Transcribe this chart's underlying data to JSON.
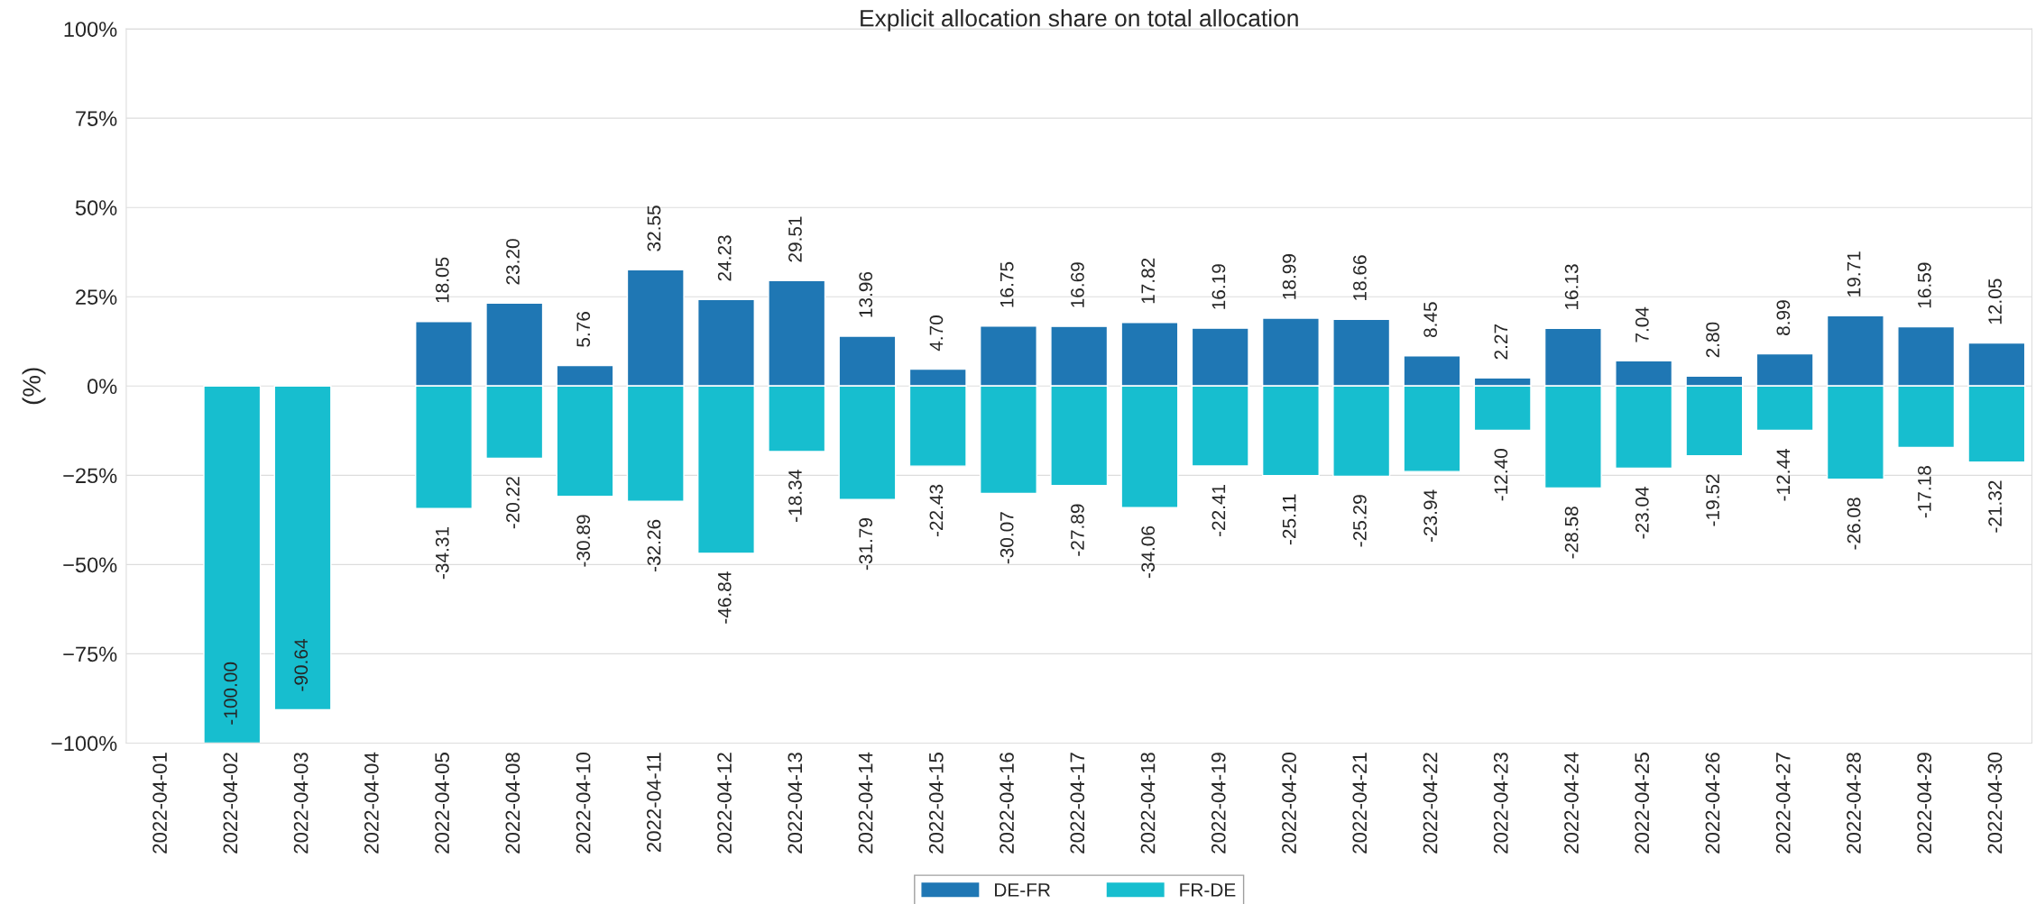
{
  "chart_data": {
    "type": "bar",
    "title": "Explicit allocation share on total allocation",
    "ylabel": "(%)",
    "categories": [
      "2022-04-01",
      "2022-04-02",
      "2022-04-03",
      "2022-04-04",
      "2022-04-05",
      "2022-04-08",
      "2022-04-10",
      "2022-04-11",
      "2022-04-12",
      "2022-04-13",
      "2022-04-14",
      "2022-04-15",
      "2022-04-16",
      "2022-04-17",
      "2022-04-18",
      "2022-04-19",
      "2022-04-20",
      "2022-04-21",
      "2022-04-22",
      "2022-04-23",
      "2022-04-24",
      "2022-04-25",
      "2022-04-26",
      "2022-04-27",
      "2022-04-28",
      "2022-04-29",
      "2022-04-30"
    ],
    "series": [
      {
        "name": "DE-FR",
        "color": "#1f77b4",
        "values": [
          null,
          null,
          null,
          null,
          18.05,
          23.2,
          5.76,
          32.55,
          24.23,
          29.51,
          13.96,
          4.7,
          16.75,
          16.69,
          17.82,
          16.19,
          18.99,
          18.66,
          8.45,
          2.27,
          16.13,
          7.04,
          2.8,
          8.99,
          19.71,
          16.59,
          12.05
        ],
        "value_labels": [
          null,
          null,
          null,
          null,
          "18.05",
          "23.20",
          "5.76",
          "32.55",
          "24.23",
          "29.51",
          "13.96",
          "4.70",
          "16.75",
          "16.69",
          "17.82",
          "16.19",
          "18.99",
          "18.66",
          "8.45",
          "2.27",
          "16.13",
          "7.04",
          "2.80",
          "8.99",
          "19.71",
          "16.59",
          "12.05"
        ]
      },
      {
        "name": "FR-DE",
        "color": "#17becf",
        "values": [
          null,
          -100.0,
          -90.64,
          null,
          -34.31,
          -20.22,
          -30.89,
          -32.26,
          -46.84,
          -18.34,
          -31.79,
          -22.43,
          -30.07,
          -27.89,
          -34.06,
          -22.41,
          -25.11,
          -25.29,
          -23.94,
          -12.4,
          -28.58,
          -23.04,
          -19.52,
          -12.44,
          -26.08,
          -17.18,
          -21.32
        ],
        "value_labels": [
          null,
          "-100.00",
          "-90.64",
          null,
          "-34.31",
          "-20.22",
          "-30.89",
          "-32.26",
          "-46.84",
          "-18.34",
          "-31.79",
          "-22.43",
          "-30.07",
          "-27.89",
          "-34.06",
          "-22.41",
          "-25.11",
          "-25.29",
          "-23.94",
          "-12.40",
          "-28.58",
          "-23.04",
          "-19.52",
          "-12.44",
          "-26.08",
          "-17.18",
          "-21.32"
        ]
      }
    ],
    "ylim": [
      -100,
      100
    ],
    "yticks": [
      {
        "value": -100,
        "label": "−100%"
      },
      {
        "value": -75,
        "label": "−75%"
      },
      {
        "value": -50,
        "label": "−50%"
      },
      {
        "value": -25,
        "label": "−25%"
      },
      {
        "value": 0,
        "label": "0%"
      },
      {
        "value": 25,
        "label": "25%"
      },
      {
        "value": 50,
        "label": "50%"
      },
      {
        "value": 75,
        "label": "75%"
      },
      {
        "value": 100,
        "label": "100%"
      }
    ],
    "stacked": true,
    "grid": "y",
    "legend": "bottom"
  }
}
